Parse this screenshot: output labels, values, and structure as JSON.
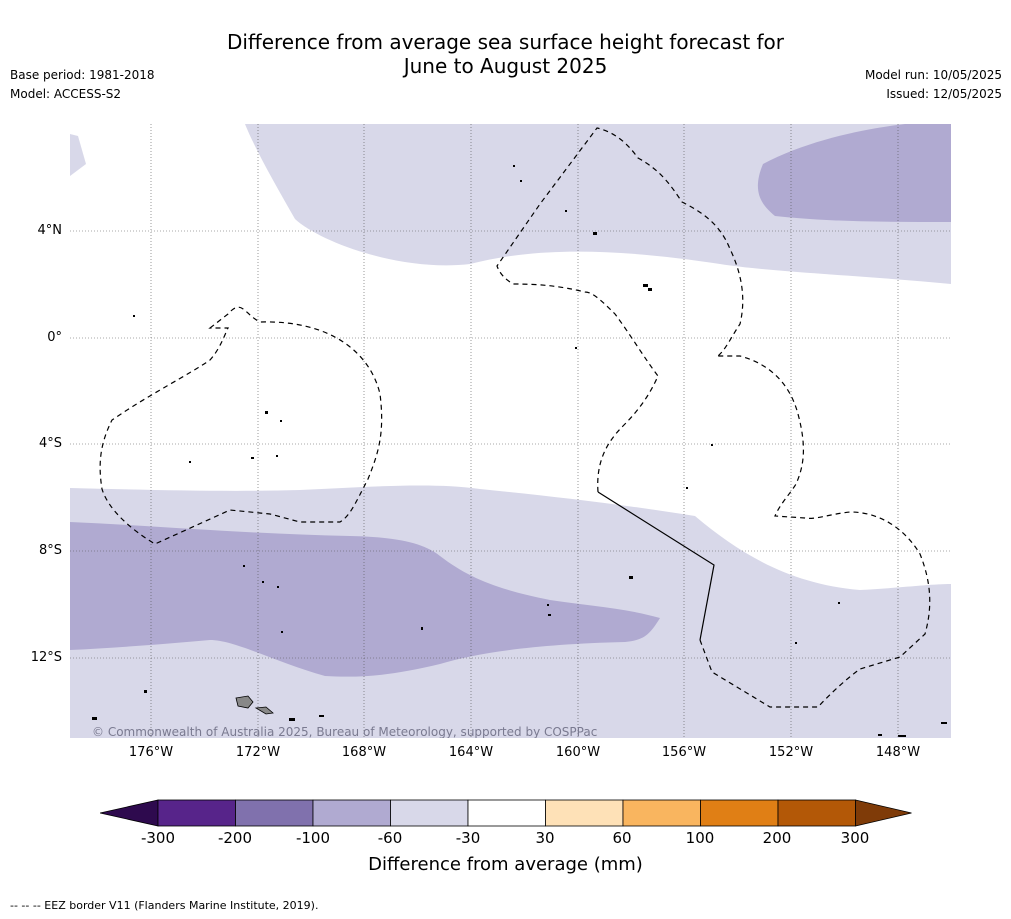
{
  "header": {
    "title_line1": "Difference from average sea surface height forecast for",
    "title_line2": "June to August 2025",
    "base_period": "Base period: 1981-2018",
    "model": "Model: ACCESS-S2",
    "model_run": "Model run: 10/05/2025",
    "issued": "Issued: 12/05/2025"
  },
  "map": {
    "lat_labels": [
      "4°N",
      "0°",
      "4°S",
      "8°S",
      "12°S"
    ],
    "lon_labels": [
      "176°W",
      "172°W",
      "168°W",
      "164°W",
      "160°W",
      "156°W",
      "152°W",
      "148°W"
    ],
    "copyright": "© Commonwealth of Australia 2025, Bureau of Meteorology, supported by COSPPac",
    "colors": {
      "anomaly_minus_30_to_60": "#d8d8e9",
      "anomaly_minus_60_to_100": "#b0aad1",
      "land": "#888888",
      "gridline": "#444444",
      "eez_border": "#000000"
    }
  },
  "colorbar": {
    "ticks": [
      "-300",
      "-200",
      "-100",
      "-60",
      "-30",
      "30",
      "60",
      "100",
      "200",
      "300"
    ],
    "colors": [
      "#2e0a4e",
      "#57248a",
      "#8071ad",
      "#b0aad1",
      "#d8d8e9",
      "#ffffff",
      "#fee1b7",
      "#f9b55f",
      "#e07f15",
      "#b35807",
      "#7f3b08"
    ],
    "label": "Difference from average (mm)"
  },
  "footnote": "--  --  -- EEZ border V11 (Flanders Marine Institute, 2019)."
}
